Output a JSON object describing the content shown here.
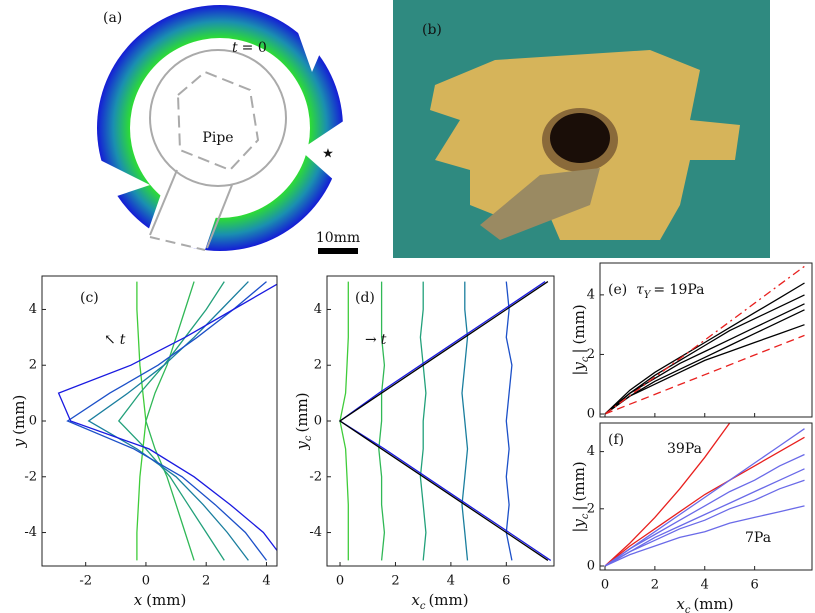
{
  "panel_a": {
    "label": "(a)",
    "t_label": "t",
    "t_value": "= 0",
    "pipe_label": "Pipe",
    "scale_bar": "10mm",
    "marker": "★"
  },
  "panel_b": {
    "label": "(b)"
  },
  "chart_data": [
    {
      "type": "line",
      "label": "(c)",
      "annotation": [
        {
          "t": "↖"
        },
        {
          "t": "t",
          "italic": true
        }
      ],
      "xlabel": [
        {
          "t": "x",
          "italic": true
        },
        {
          "t": "(mm)"
        }
      ],
      "ylabel": [
        {
          "t": "y",
          "italic": true
        },
        {
          "t": "(mm)"
        }
      ],
      "xlim": [
        -3.45,
        4.35
      ],
      "ylim": [
        -5.2,
        5.2
      ],
      "xticks": [
        -2,
        0,
        2,
        4
      ],
      "yticks": [
        -4,
        -2,
        0,
        2,
        4
      ],
      "y": [
        -5,
        -4,
        -3,
        -2,
        -1,
        0,
        1,
        2,
        3,
        4,
        5
      ],
      "series": [
        {
          "color": "#3fcc3a",
          "values": [
            -0.3,
            -0.3,
            -0.25,
            -0.2,
            -0.1,
            0.0,
            -0.1,
            -0.2,
            -0.25,
            -0.3,
            -0.3
          ]
        },
        {
          "color": "#30b856",
          "values": [
            1.6,
            1.3,
            1.0,
            0.7,
            0.3,
            0.0,
            0.3,
            0.7,
            1.0,
            1.3,
            1.6
          ]
        },
        {
          "color": "#22a07a",
          "values": [
            2.6,
            2.0,
            1.4,
            0.8,
            0.0,
            -0.9,
            -0.2,
            0.6,
            1.3,
            2.0,
            2.6
          ]
        },
        {
          "color": "#1a7e9e",
          "values": [
            3.4,
            2.7,
            1.9,
            1.0,
            -0.3,
            -1.9,
            -0.6,
            0.6,
            1.6,
            2.5,
            3.4
          ]
        },
        {
          "color": "#1c50c8",
          "values": [
            4.0,
            3.3,
            2.3,
            1.2,
            -0.4,
            -2.6,
            -1.2,
            0.4,
            1.7,
            2.9,
            4.0
          ]
        },
        {
          "color": "#1a1ae0",
          "values": [
            4.6,
            3.9,
            2.8,
            1.6,
            0.1,
            -2.5,
            -2.9,
            -0.5,
            1.3,
            2.9,
            4.5
          ]
        }
      ]
    },
    {
      "type": "line",
      "label": "(d)",
      "annotation": [
        {
          "t": "→"
        },
        {
          "t": "t",
          "italic": true
        }
      ],
      "xlabel": [
        {
          "t": "x",
          "italic": true
        },
        {
          "t": "c",
          "sub": true,
          "italic": true
        },
        {
          "t": "(mm)"
        }
      ],
      "ylabel": [
        {
          "t": "y",
          "italic": true
        },
        {
          "t": "c",
          "sub": true,
          "italic": true
        },
        {
          "t": "(mm)"
        }
      ],
      "xlim": [
        -0.47,
        7.72
      ],
      "ylim": [
        -5.2,
        5.2
      ],
      "xticks": [
        0,
        2,
        4,
        6
      ],
      "yticks": [
        -4,
        -2,
        0,
        2,
        4
      ],
      "y": [
        -5,
        -4,
        -3,
        -2,
        -1,
        0,
        1,
        2,
        3,
        4,
        5
      ],
      "series": [
        {
          "color": "#3fcc3a",
          "values": [
            0.3,
            0.3,
            0.3,
            0.25,
            0.2,
            0.0,
            0.2,
            0.25,
            0.3,
            0.3,
            0.3
          ]
        },
        {
          "color": "#30b856",
          "values": [
            1.5,
            1.6,
            1.5,
            1.5,
            1.4,
            1.5,
            1.5,
            1.6,
            1.5,
            1.5,
            1.5
          ]
        },
        {
          "color": "#22a07a",
          "values": [
            3.0,
            3.1,
            3.0,
            2.9,
            3.0,
            3.0,
            3.1,
            3.0,
            2.9,
            3.0,
            3.0
          ]
        },
        {
          "color": "#1a7e9e",
          "values": [
            4.6,
            4.5,
            4.4,
            4.5,
            4.6,
            4.5,
            4.4,
            4.5,
            4.6,
            4.5,
            4.5
          ]
        },
        {
          "color": "#1c50c8",
          "values": [
            6.2,
            6.0,
            6.1,
            6.0,
            6.1,
            6.0,
            6.1,
            6.2,
            6.0,
            6.1,
            6.0
          ]
        },
        {
          "color": "#1a1ae0",
          "values": [
            7.6,
            6.1,
            4.6,
            3.1,
            1.6,
            0.0,
            1.4,
            2.9,
            4.4,
            5.9,
            7.4
          ]
        },
        {
          "color": "#000000",
          "values": [
            7.5,
            6.0,
            4.5,
            3.0,
            1.5,
            0.0,
            1.5,
            3.0,
            4.5,
            6.0,
            7.5
          ]
        }
      ]
    },
    {
      "type": "line",
      "label": "(e)",
      "annotation": [
        {
          "t": "τ",
          "italic": true
        },
        {
          "t": "Y",
          "sub": true,
          "italic": true
        },
        {
          "t": "= 19Pa"
        }
      ],
      "ylabel": [
        {
          "t": "|y",
          "italic": true
        },
        {
          "t": "c",
          "sub": true,
          "italic": true
        },
        {
          "t": "|"
        },
        {
          "t": "(mm)"
        }
      ],
      "xlim": [
        -0.2,
        8.3
      ],
      "ylim": [
        -0.1,
        5.07
      ],
      "xticks": [
        0,
        2,
        4,
        6
      ],
      "yticks": [
        0,
        2,
        4
      ],
      "xtick_labels": false,
      "x": [
        0,
        1,
        2,
        3,
        4,
        5,
        6,
        7,
        8
      ],
      "series": [
        {
          "color": "#000000",
          "values": [
            0,
            0.8,
            1.4,
            1.9,
            2.4,
            2.9,
            3.4,
            3.9,
            4.4
          ]
        },
        {
          "color": "#000000",
          "values": [
            0,
            0.7,
            1.2,
            1.7,
            2.1,
            2.5,
            2.9,
            3.3,
            3.7
          ]
        },
        {
          "color": "#000000",
          "values": [
            0,
            0.6,
            1.0,
            1.4,
            1.8,
            2.1,
            2.4,
            2.7,
            3.0
          ]
        },
        {
          "color": "#000000",
          "values": [
            0,
            0.7,
            1.3,
            1.8,
            2.3,
            2.8,
            3.2,
            3.6,
            4.0
          ]
        },
        {
          "color": "#000000",
          "values": [
            0,
            0.6,
            1.1,
            1.5,
            1.9,
            2.3,
            2.7,
            3.1,
            3.5
          ]
        },
        {
          "color": "#e8201e",
          "dash": "dashdot",
          "values": [
            0,
            0.62,
            1.24,
            1.86,
            2.48,
            3.1,
            3.72,
            4.34,
            4.96
          ]
        },
        {
          "color": "#e8201e",
          "dash": "dashed",
          "values": [
            0,
            0.33,
            0.66,
            0.99,
            1.32,
            1.65,
            1.98,
            2.31,
            2.64
          ]
        }
      ]
    },
    {
      "type": "line",
      "label": "(f)",
      "annotations": [
        {
          "text": "39Pa",
          "color": "#e8201e"
        },
        {
          "text": "7Pa",
          "color": "#5a5ae8"
        }
      ],
      "xlabel": [
        {
          "t": "x",
          "italic": true
        },
        {
          "t": "c",
          "sub": true,
          "italic": true
        },
        {
          "t": "(mm)"
        }
      ],
      "ylabel": [
        {
          "t": "|y",
          "italic": true
        },
        {
          "t": "c",
          "sub": true,
          "italic": true
        },
        {
          "t": "|"
        },
        {
          "t": "(mm)"
        }
      ],
      "xlim": [
        -0.2,
        8.3
      ],
      "ylim": [
        -0.14,
        5.0
      ],
      "xticks": [
        0,
        2,
        4,
        6
      ],
      "yticks": [
        0,
        2,
        4
      ],
      "x": [
        0,
        1,
        2,
        3,
        4,
        5,
        6,
        7,
        8
      ],
      "series": [
        {
          "color": "#e8201e",
          "values": [
            0,
            0.8,
            1.7,
            2.7,
            3.8,
            5.0,
            null,
            null,
            null
          ]
        },
        {
          "color": "#e8201e",
          "values": [
            0,
            0.7,
            1.3,
            1.9,
            2.5,
            3.0,
            3.5,
            4.0,
            4.5
          ]
        },
        {
          "color": "#6a6ae8",
          "values": [
            0,
            0.6,
            1.1,
            1.6,
            2.1,
            2.6,
            3.0,
            3.5,
            3.9
          ]
        },
        {
          "color": "#6a6ae8",
          "values": [
            0,
            0.5,
            1.0,
            1.4,
            1.8,
            2.2,
            2.6,
            3.0,
            3.4
          ]
        },
        {
          "color": "#6a6ae8",
          "values": [
            0,
            0.5,
            0.9,
            1.3,
            1.6,
            2.0,
            2.3,
            2.7,
            3.0
          ]
        },
        {
          "color": "#6a6ae8",
          "values": [
            0,
            0.4,
            0.7,
            1.0,
            1.2,
            1.5,
            1.7,
            1.9,
            2.1
          ]
        },
        {
          "color": "#6a6ae8",
          "values": [
            0,
            0.6,
            1.2,
            1.8,
            2.4,
            3.0,
            3.6,
            4.2,
            4.8
          ]
        }
      ]
    }
  ]
}
